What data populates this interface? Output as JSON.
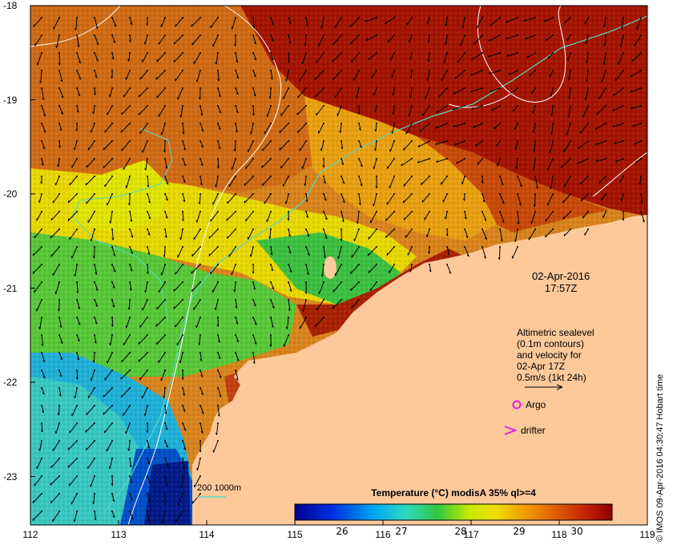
{
  "map": {
    "region": "NW Australia coast",
    "x_ticks": [
      "112",
      "113",
      "114",
      "115",
      "116",
      "117",
      "118",
      "119"
    ],
    "y_ticks": [
      "-18",
      "-19",
      "-20",
      "-21",
      "-22",
      "-23"
    ],
    "date_line1": "02-Apr-2016",
    "date_line2": "17:57Z",
    "sealevel_lines": [
      "Altimetric sealevel",
      "(0.1m contours)",
      "and velocity for",
      "02-Apr 17Z",
      "0.5m/s  (1kt 24h)"
    ],
    "legend_argo": "Argo",
    "legend_drifter": "drifter",
    "depth_legend": "200  1000m",
    "colorbar_title": "Temperature (°C) modisA 35% ql>=4",
    "colorbar_ticks": [
      "26",
      "27",
      "28",
      "29",
      "30"
    ],
    "credit": "© IMOS 09-Apr-2016 04:30:47 Hobart time",
    "colors": {
      "land": "#fdc99b",
      "very_warm": "#a01100",
      "warm": "#e0701c",
      "yellow": "#e8e400",
      "green": "#38c83c",
      "cyan": "#30c0e8",
      "dark_blue": "#00208c",
      "contour": "#ffffff",
      "isobath": "#55d8c8",
      "argo": "#e020e0"
    }
  }
}
